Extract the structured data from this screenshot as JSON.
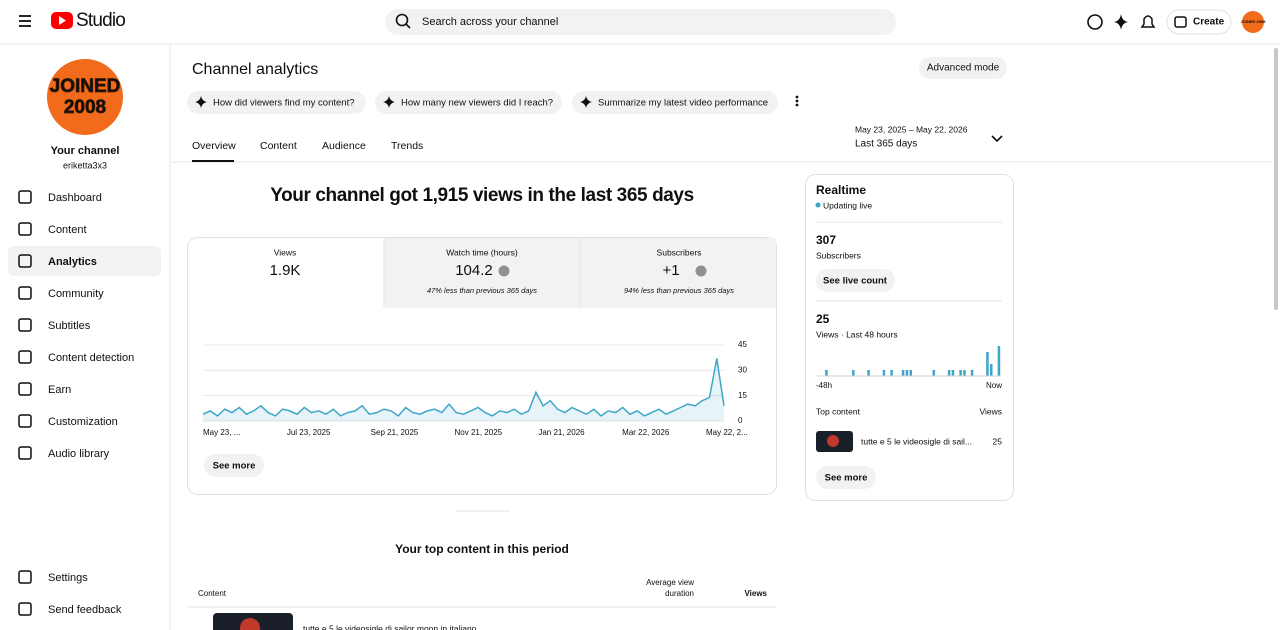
{
  "header": {
    "logo_text": "Studio",
    "search_placeholder": "Search across your channel",
    "create": "Create",
    "avatar_text": "JOINED 2008"
  },
  "sidebar": {
    "avatar_lines": [
      "JOINED",
      "2008"
    ],
    "channel_name": "Your channel",
    "handle": "eriketta3x3",
    "nav": [
      "Dashboard",
      "Content",
      "Analytics",
      "Community",
      "Subtitles",
      "Content detection",
      "Earn",
      "Customization",
      "Audio library"
    ],
    "active": "Analytics",
    "bottom": [
      "Settings",
      "Send feedback"
    ]
  },
  "main": {
    "title": "Channel analytics",
    "advanced_mode": "Advanced mode",
    "prompts": [
      "How did viewers find my content?",
      "How many new viewers did I reach?",
      "Summarize my latest video performance"
    ],
    "tabs": [
      "Overview",
      "Content",
      "Audience",
      "Trends"
    ],
    "date_range": "May 23, 2025 – May 22, 2026",
    "period": "Last 365 days",
    "headline": "Your channel got 1,915 views in the last 365 days",
    "metrics": [
      {
        "label": "Views",
        "value": "1.9K"
      },
      {
        "label": "Watch time (hours)",
        "value": "104.2",
        "note": "47% less than previous 365 days"
      },
      {
        "label": "Subscribers",
        "value": "+1",
        "note": "94% less than previous 365 days"
      }
    ],
    "see_more": "See more",
    "top_content": {
      "title": "Your top content in this period",
      "columns": [
        "Content",
        "Average view duration",
        "Views"
      ],
      "row_title": "tutte e 5 le videosigle di sailor moon in italiano"
    }
  },
  "realtime": {
    "title": "Realtime",
    "status": "Updating live",
    "subscribers_value": "307",
    "subscribers_label": "Subscribers",
    "live_count": "See live count",
    "views_value": "25",
    "views_label": "Views · Last 48 hours",
    "top_content": "Top content",
    "views_col": "Views",
    "item_title": "tutte e 5 le videosigle di sail...",
    "item_views": "25",
    "see_more": "See more"
  },
  "chart_data": [
    {
      "type": "line",
      "color": "#3ea6c8",
      "values": [
        4,
        6,
        3,
        7,
        5,
        8,
        4,
        6,
        9,
        5,
        3,
        7,
        6,
        4,
        8,
        5,
        6,
        4,
        7,
        3,
        5,
        6,
        9,
        4,
        5,
        7,
        6,
        3,
        8,
        5,
        4,
        6,
        7,
        5,
        10,
        5,
        4,
        6,
        8,
        5,
        3,
        6,
        5,
        7,
        4,
        6,
        17,
        9,
        12,
        7,
        5,
        8,
        6,
        4,
        7,
        3,
        6,
        5,
        8,
        4,
        6,
        3,
        5,
        7,
        4,
        6,
        8,
        10,
        9,
        12,
        14,
        37,
        9
      ],
      "x_labels": [
        "May 23, ...",
        "Jul 23, 2025",
        "Sep 21, 2025",
        "Nov 21, 2025",
        "Jan 21, 2026",
        "Mar 22, 2026",
        "May 22, 2..."
      ],
      "ylim": [
        0,
        45
      ],
      "yticks": [
        0,
        15,
        30,
        45
      ],
      "grid": true
    },
    {
      "type": "bar",
      "color": "#3ea6c8",
      "values": [
        0,
        0,
        1,
        0,
        0,
        0,
        0,
        0,
        0,
        1,
        0,
        0,
        0,
        1,
        0,
        0,
        0,
        1,
        0,
        1,
        0,
        0,
        1,
        1,
        1,
        0,
        0,
        0,
        0,
        0,
        1,
        0,
        0,
        0,
        1,
        1,
        0,
        1,
        1,
        0,
        1,
        0,
        0,
        0,
        4,
        2,
        0,
        5
      ],
      "x_labels": [
        "-48h",
        "Now"
      ],
      "ylim": [
        0,
        5
      ]
    }
  ]
}
